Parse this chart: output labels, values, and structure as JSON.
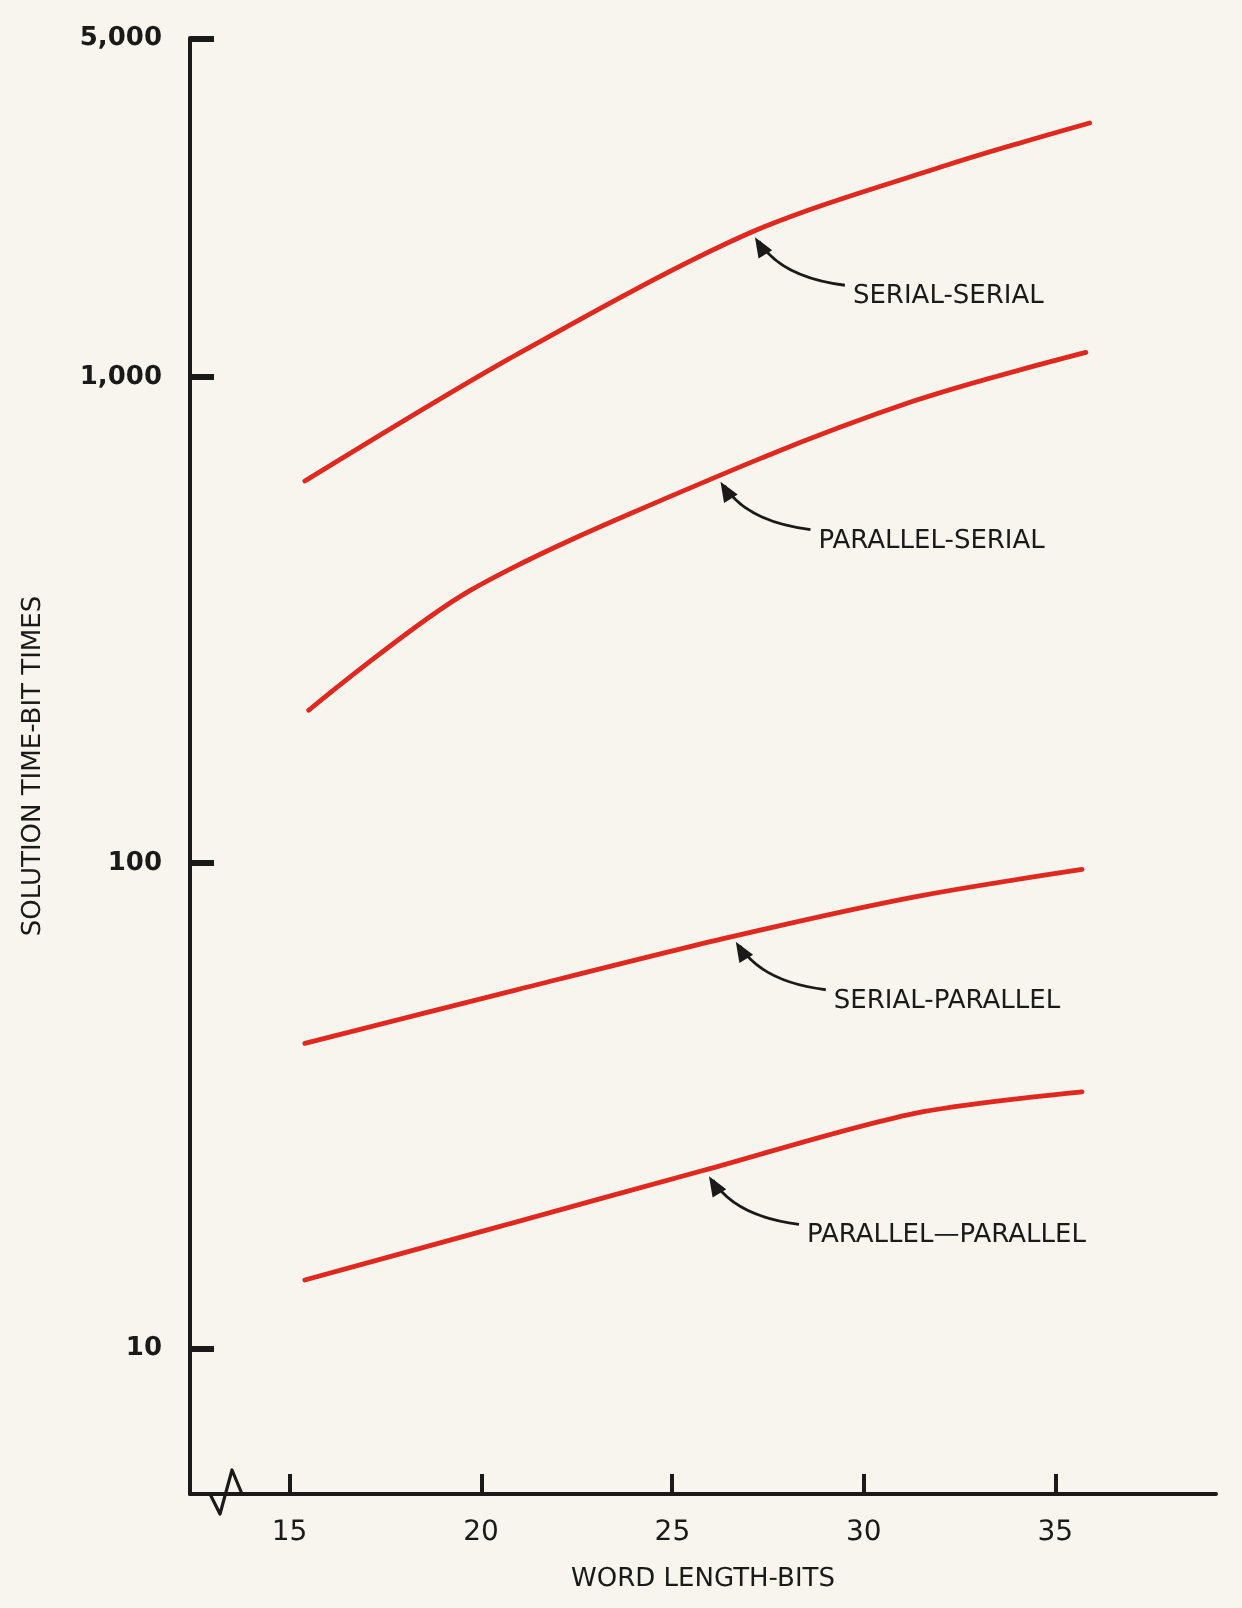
{
  "chart_data": {
    "type": "line",
    "xlabel": "WORD LENGTH-BITS",
    "ylabel": "SOLUTION TIME-BIT TIMES",
    "log": "y",
    "grid": false,
    "marker": "none",
    "line_style": "solid",
    "xlim": [
      12.4,
      39.2
    ],
    "xticks": [
      15,
      20,
      25,
      30,
      35
    ],
    "ylim": [
      5,
      5000
    ],
    "yticks": [
      10,
      100,
      {
        "value": 1000,
        "label": "1,000"
      },
      {
        "value": 5000,
        "label": "5,000"
      }
    ],
    "series": [
      {
        "color": "#e0281e",
        "x": [
          15.4,
          20.9,
          27.0,
          32.2,
          35.9
        ],
        "values": [
          611,
          1110,
          1980,
          2740,
          3340
        ]
      },
      {
        "color": "#e0281e",
        "x": [
          15.5,
          19.7,
          26.1,
          31.3,
          35.8
        ],
        "values": [
          206,
          363,
          621,
          893,
          1125
        ]
      },
      {
        "color": "#e0281e",
        "x": [
          15.4,
          20.9,
          26.5,
          31.3,
          35.7
        ],
        "values": [
          42.4,
          54.6,
          70.2,
          84.9,
          96.8
        ]
      },
      {
        "color": "#e0281e",
        "x": [
          15.4,
          20.5,
          25.8,
          31.3,
          35.7
        ],
        "values": [
          13.8,
          17.8,
          23.2,
          30.4,
          33.7
        ]
      }
    ],
    "annotations": [
      {
        "text": "SERIAL-SERIAL",
        "x": 27.0,
        "y": 1980
      },
      {
        "text": "PARALLEL-SERIAL",
        "x": 26.1,
        "y": 621
      },
      {
        "text": "SERIAL-PARALLEL",
        "x": 26.5,
        "y": 70
      },
      {
        "text": "PARALLEL—PARALLEL",
        "x": 25.8,
        "y": 23
      }
    ]
  }
}
